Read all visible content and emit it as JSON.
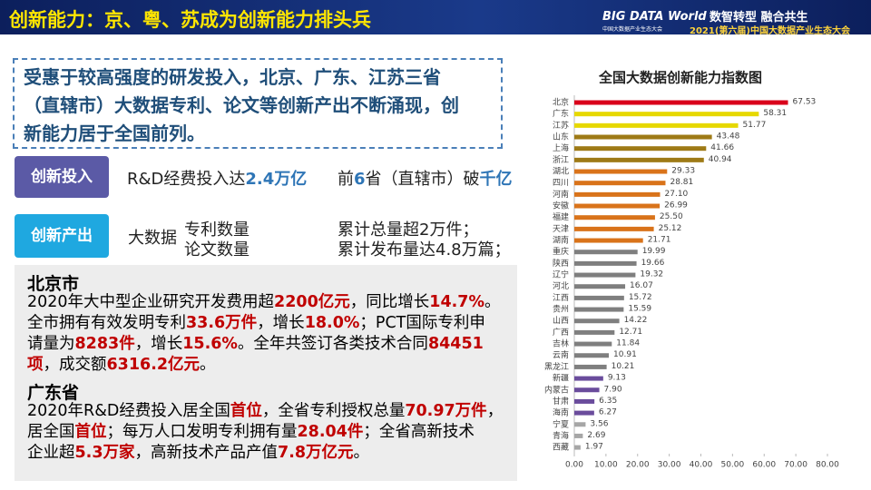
{
  "header": {
    "title": "创新能力：京、粤、苏成为创新能力排头兵",
    "logo": "BIG DATA World",
    "logo_subtitle": "中国大数据产业生态大会",
    "slogan": "数智转型 融合共生",
    "event": "2021(第六届)中国大数据产业生态大会"
  },
  "intro": {
    "lines": [
      "受惠于较高强度的研发投入，北京、广东、江苏三省",
      "（直辖市）大数据专利、论文等创新产出不断涌现，创",
      "新能力居于全国前列。"
    ]
  },
  "investment": {
    "label": "创新投入",
    "text": [
      "R&D经费投入达",
      {
        "text": "2.4万亿",
        "color": "#2e75b6"
      }
    ],
    "text2": [
      "前",
      {
        "text": "6",
        "color": "#2e75b6"
      },
      "省（直辖市）破",
      {
        "text": "千亿",
        "color": "#2e75b6"
      }
    ]
  },
  "output": {
    "label": "创新产出",
    "subject": "大数据",
    "items": [
      "专利数量",
      "论文数量"
    ],
    "results": [
      "累计总量超2万件；",
      "累计发布量达4.8万篇；"
    ]
  },
  "beijing": {
    "heading": "北京市",
    "lines": [
      [
        "2020年大中型企业研究开发费用超",
        {
          "text": "2200亿元",
          "color": "#c00000"
        },
        "，同比增长",
        {
          "text": "14.7%",
          "color": "#c00000"
        },
        "。"
      ],
      [
        "全市拥有有效发明专利",
        {
          "text": "33.6万件",
          "color": "#c00000"
        },
        "，增长",
        {
          "text": "18.0%",
          "color": "#c00000"
        },
        "；PCT国际专利申"
      ],
      [
        "请量为",
        {
          "text": "8283件",
          "color": "#c00000"
        },
        "，增长",
        {
          "text": "15.6%",
          "color": "#c00000"
        },
        "。全年共签订各类技术合同",
        {
          "text": "84451",
          "color": "#c00000"
        }
      ],
      [
        {
          "text": "项",
          "color": "#c00000"
        },
        "，成交额",
        {
          "text": "6316.2亿元",
          "color": "#c00000"
        },
        "。"
      ]
    ]
  },
  "guangdong": {
    "heading": "广东省",
    "lines": [
      [
        "2020年R&D经费投入居全国",
        {
          "text": "首位",
          "color": "#c00000"
        },
        "，全省专利授权总量",
        {
          "text": "70.97万件",
          "color": "#c00000"
        },
        "，"
      ],
      [
        "居全国",
        {
          "text": "首位",
          "color": "#c00000"
        },
        "；每万人口发明专利拥有量",
        {
          "text": "28.04件",
          "color": "#c00000"
        },
        "；全省高新技术"
      ],
      [
        "企业超",
        {
          "text": "5.3万家",
          "color": "#c00000"
        },
        "，高新技术产品产值",
        {
          "text": "7.8万亿元",
          "color": "#c00000"
        },
        "。"
      ]
    ]
  },
  "chart_data": {
    "type": "hbar",
    "title": "全国大数据创新能力指数图",
    "categories": [
      "北京",
      "广东",
      "江苏",
      "山东",
      "上海",
      "浙江",
      "湖北",
      "四川",
      "河南",
      "安徽",
      "福建",
      "天津",
      "湖南",
      "重庆",
      "陕西",
      "辽宁",
      "河北",
      "江西",
      "贵州",
      "山西",
      "广西",
      "吉林",
      "云南",
      "黑龙江",
      "新疆",
      "内蒙古",
      "甘肃",
      "海南",
      "宁夏",
      "青海",
      "西藏"
    ],
    "values": [
      67.53,
      58.31,
      51.77,
      43.48,
      41.66,
      40.94,
      29.33,
      28.81,
      27.1,
      26.99,
      25.5,
      25.12,
      21.71,
      19.99,
      19.66,
      19.32,
      16.07,
      15.72,
      15.59,
      14.22,
      12.71,
      11.84,
      10.91,
      10.21,
      9.13,
      7.9,
      6.35,
      6.27,
      3.56,
      2.69,
      1.97
    ],
    "value_labels": [
      "67.53",
      "58.31",
      "51.77",
      "43.48",
      "41.66",
      "40.94",
      "29.33",
      "28.81",
      "27.10",
      "26.99",
      "25.50",
      "25.12",
      "21.71",
      "19.99",
      "19.66",
      "19.32",
      "16.07",
      "15.72",
      "15.59",
      "14.22",
      "12.71",
      "11.84",
      "10.91",
      "10.21",
      "9.13",
      "7.90",
      "6.35",
      "6.27",
      "3.56",
      "2.69",
      "1.97"
    ],
    "colors": [
      "#d9001b",
      "#e6d800",
      "#e6d800",
      "#9e7a16",
      "#9e7a16",
      "#9e7a16",
      "#d9731a",
      "#d9731a",
      "#d9731a",
      "#d9731a",
      "#d9731a",
      "#d9731a",
      "#d9731a",
      "#7f7f7f",
      "#7f7f7f",
      "#7f7f7f",
      "#7f7f7f",
      "#7f7f7f",
      "#7f7f7f",
      "#7f7f7f",
      "#7f7f7f",
      "#7f7f7f",
      "#7f7f7f",
      "#7f7f7f",
      "#6a4c9c",
      "#6a4c9c",
      "#6a4c9c",
      "#6a4c9c",
      "#a6a6a6",
      "#a6a6a6",
      "#a6a6a6"
    ],
    "xlim": [
      0,
      80
    ],
    "xticks": [
      {
        "value": 0,
        "label": "0.00"
      },
      {
        "value": 10,
        "label": "10.00"
      },
      {
        "value": 20,
        "label": "20.00"
      },
      {
        "value": 30,
        "label": "30.00"
      },
      {
        "value": 40,
        "label": "40.00"
      },
      {
        "value": 50,
        "label": "50.00"
      },
      {
        "value": 60,
        "label": "60.00"
      },
      {
        "value": 70,
        "label": "70.00"
      },
      {
        "value": 80,
        "label": "80.00"
      }
    ]
  }
}
